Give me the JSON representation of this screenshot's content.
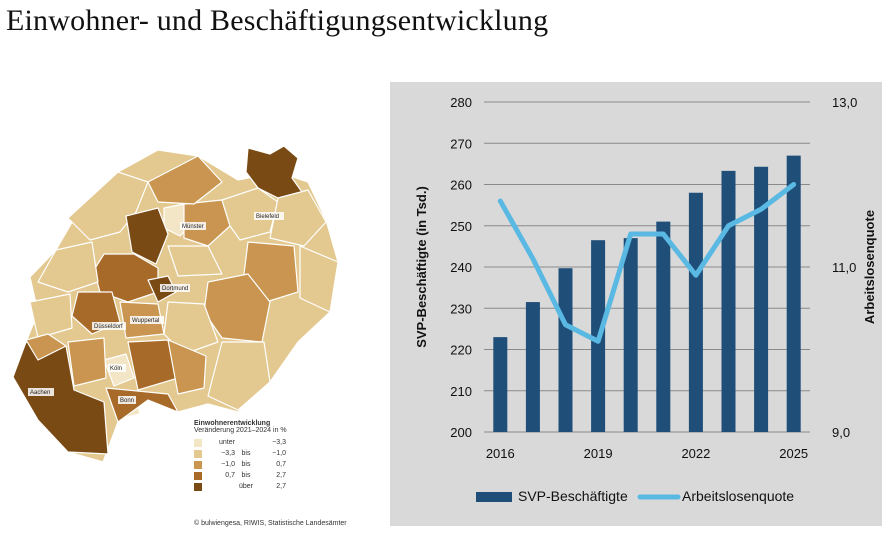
{
  "page": {
    "title": "Einwohner- und Beschäftigungsentwicklung"
  },
  "map": {
    "cities": [
      "Münster",
      "Bielefeld",
      "Dortmund",
      "Düsseldorf",
      "Wuppertal",
      "Köln",
      "Bonn",
      "Aachen"
    ],
    "legend_title": "Einwohnerentwicklung",
    "legend_subtitle": "Veränderung 2021–2024 in %",
    "legend": [
      {
        "from": "unter",
        "mid": "",
        "to": "−3,3",
        "color": "#f3e6c6"
      },
      {
        "from": "−3,3",
        "mid": "bis",
        "to": "−1,0",
        "color": "#e3c890"
      },
      {
        "from": "−1,0",
        "mid": "bis",
        "to": "0,7",
        "color": "#c99550"
      },
      {
        "from": "0,7",
        "mid": "bis",
        "to": "2,7",
        "color": "#a86a28"
      },
      {
        "from": "",
        "mid": "über",
        "to": "2,7",
        "color": "#7a4a15"
      }
    ],
    "source": "© bulwiengesa, RIWIS, Statistische Landesämter"
  },
  "chart_data": {
    "type": "bar",
    "x": [
      2016,
      2017,
      2018,
      2019,
      2020,
      2021,
      2022,
      2023,
      2024,
      2025
    ],
    "xticks": [
      "2016",
      "2019",
      "2022",
      "2025"
    ],
    "series": [
      {
        "name": "SVP-Beschäftigte",
        "type": "bar",
        "axis": "left",
        "color": "#1f4e79",
        "values": [
          223,
          231.5,
          239.7,
          246.5,
          247,
          251,
          258,
          263.3,
          264.3,
          267
        ]
      },
      {
        "name": "Arbeitslosenquote",
        "type": "line",
        "axis": "right",
        "color": "#5ab9e3",
        "values": [
          11.8,
          11.1,
          10.3,
          10.1,
          11.4,
          11.4,
          10.9,
          11.5,
          11.7,
          12.0
        ]
      }
    ],
    "ylabel": "SVP-Beschäftigte (in Tsd.)",
    "ylim": [
      200,
      280
    ],
    "yticks": [
      "200",
      "210",
      "220",
      "230",
      "240",
      "250",
      "260",
      "270",
      "280"
    ],
    "y2label": "Arbeitslosenquote",
    "y2lim": [
      9.0,
      13.0
    ],
    "y2ticks": [
      "9,0",
      "11,0",
      "13,0"
    ],
    "grid": true,
    "legend_position": "bottom"
  }
}
